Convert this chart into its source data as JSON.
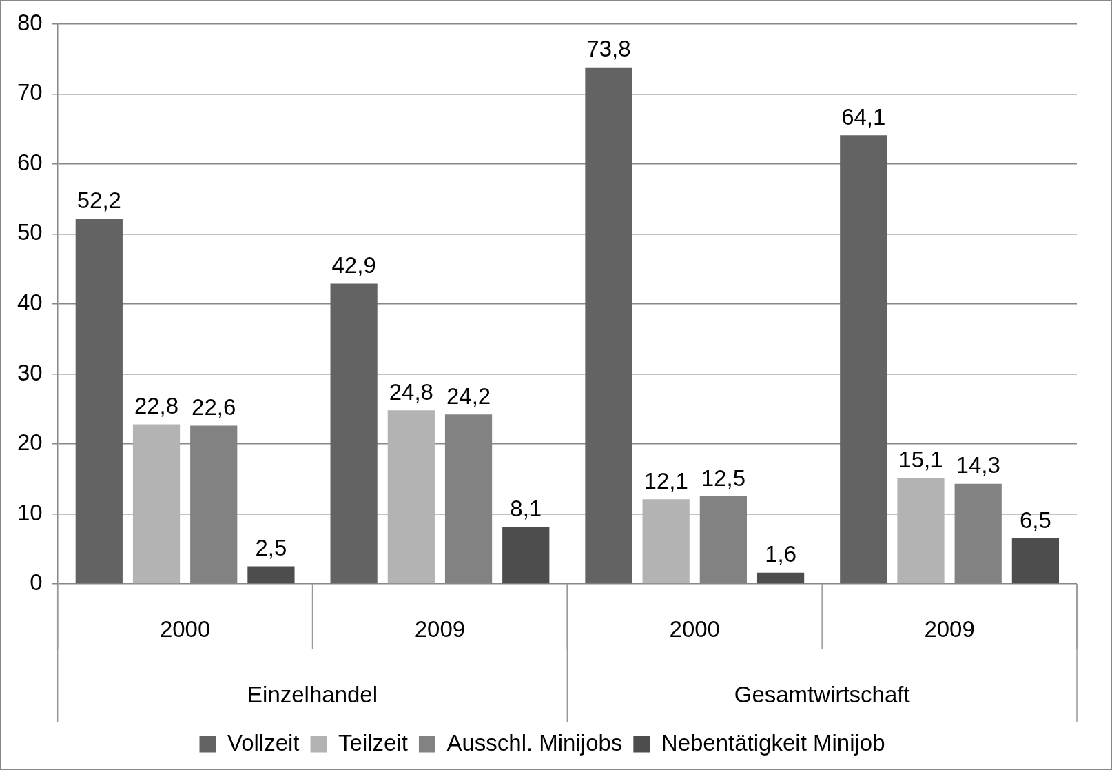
{
  "chart_data": {
    "type": "bar",
    "categories": [
      "2000",
      "2009",
      "2000",
      "2009"
    ],
    "annotations": [
      "Einzelhandel",
      "Gesamtwirtschaft"
    ],
    "series": [
      {
        "name": "Vollzeit",
        "color": "#636363",
        "values": [
          52.2,
          42.9,
          73.8,
          64.1
        ],
        "value_labels": [
          "52,2",
          "42,9",
          "73,8",
          "64,1"
        ]
      },
      {
        "name": "Teilzeit",
        "color": "#b3b3b3",
        "values": [
          22.8,
          24.8,
          12.1,
          15.1
        ],
        "value_labels": [
          "22,8",
          "24,8",
          "12,1",
          "15,1"
        ]
      },
      {
        "name": "Ausschl. Minijobs",
        "color": "#828282",
        "values": [
          22.6,
          24.2,
          12.5,
          14.3
        ],
        "value_labels": [
          "22,6",
          "24,2",
          "12,5",
          "14,3"
        ]
      },
      {
        "name": "Nebentätigkeit Minijob",
        "color": "#4d4d4d",
        "values": [
          2.5,
          8.1,
          1.6,
          6.5
        ],
        "value_labels": [
          "2,5",
          "8,1",
          "1,6",
          "6,5"
        ]
      }
    ],
    "ylim": [
      0,
      80
    ],
    "yticks": [
      0,
      10,
      20,
      30,
      40,
      50,
      60,
      70,
      80
    ],
    "grid": "y",
    "legend": "bottom"
  }
}
